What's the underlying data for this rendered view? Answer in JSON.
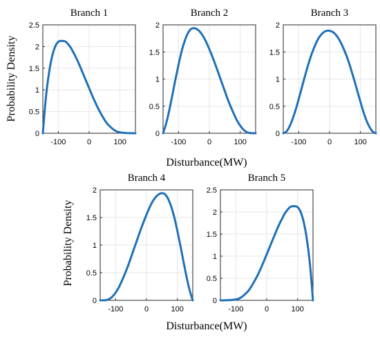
{
  "figure": {
    "ylabel": "Probability Density",
    "xlabel": "Disturbance(MW)",
    "line_color": "#1f6fb7"
  },
  "chart_data": [
    {
      "type": "line",
      "title": "Branch 1",
      "xlim": [
        -150,
        150
      ],
      "ylim": [
        0,
        2.5
      ],
      "xticks": [
        -100,
        0,
        100
      ],
      "yticks": [
        0,
        0.5,
        1,
        1.5,
        2,
        2.5
      ],
      "xtick_labels": [
        "-100",
        "0",
        "100"
      ],
      "ytick_labels": [
        "0",
        "0.5",
        "1",
        "1.5",
        "2",
        "2.5"
      ],
      "grid": true,
      "series": [
        {
          "x": [
            -150,
            -140,
            -130,
            -120,
            -110,
            -100,
            -90,
            -78,
            -70,
            -60,
            -50,
            -40,
            -30,
            -20,
            -10,
            0,
            10,
            20,
            30,
            40,
            50,
            60,
            70,
            80,
            90,
            100,
            110,
            120,
            130,
            140,
            150
          ],
          "values": [
            0,
            0.83,
            1.39,
            1.77,
            2.0,
            2.11,
            2.13,
            2.12,
            2.07,
            1.98,
            1.85,
            1.71,
            1.55,
            1.38,
            1.21,
            1.04,
            0.87,
            0.71,
            0.56,
            0.43,
            0.31,
            0.21,
            0.14,
            0.08,
            0.04,
            0.02,
            0.01,
            0.005,
            0.002,
            0.001,
            0
          ]
        }
      ]
    },
    {
      "type": "line",
      "title": "Branch 2",
      "xlim": [
        -150,
        150
      ],
      "ylim": [
        0,
        2
      ],
      "xticks": [
        -100,
        0,
        100
      ],
      "yticks": [
        0,
        0.5,
        1,
        1.5,
        2
      ],
      "xtick_labels": [
        "-100",
        "0",
        "100"
      ],
      "ytick_labels": [
        "0",
        "0.5",
        "1",
        "1.5",
        "2"
      ],
      "grid": true,
      "series": [
        {
          "x": [
            -150,
            -140,
            -130,
            -120,
            -110,
            -100,
            -90,
            -80,
            -70,
            -60,
            -50,
            -40,
            -30,
            -20,
            -10,
            0,
            10,
            20,
            30,
            40,
            50,
            60,
            70,
            80,
            90,
            100,
            110,
            120,
            130,
            140,
            150
          ],
          "values": [
            0,
            0.18,
            0.42,
            0.7,
            0.99,
            1.26,
            1.51,
            1.7,
            1.84,
            1.92,
            1.94,
            1.92,
            1.87,
            1.79,
            1.68,
            1.55,
            1.41,
            1.26,
            1.1,
            0.94,
            0.78,
            0.62,
            0.48,
            0.35,
            0.23,
            0.14,
            0.07,
            0.025,
            0.005,
            0.001,
            0
          ]
        }
      ]
    },
    {
      "type": "line",
      "title": "Branch 3",
      "xlim": [
        -150,
        150
      ],
      "ylim": [
        0,
        2
      ],
      "xticks": [
        -100,
        0,
        100
      ],
      "yticks": [
        0,
        0.5,
        1,
        1.5,
        2
      ],
      "xtick_labels": [
        "-100",
        "0",
        "100"
      ],
      "ytick_labels": [
        "0",
        "0.5",
        "1",
        "1.5",
        "2"
      ],
      "grid": true,
      "series": [
        {
          "x": [
            -150,
            -140,
            -130,
            -120,
            -110,
            -100,
            -90,
            -80,
            -70,
            -60,
            -50,
            -40,
            -30,
            -20,
            -10,
            0,
            10,
            20,
            30,
            40,
            50,
            60,
            70,
            80,
            90,
            100,
            110,
            120,
            130,
            140,
            150
          ],
          "values": [
            0,
            0.03,
            0.12,
            0.26,
            0.43,
            0.63,
            0.84,
            1.05,
            1.25,
            1.43,
            1.58,
            1.71,
            1.8,
            1.86,
            1.89,
            1.89,
            1.87,
            1.82,
            1.74,
            1.63,
            1.5,
            1.35,
            1.17,
            0.98,
            0.78,
            0.58,
            0.39,
            0.23,
            0.11,
            0.03,
            0
          ]
        }
      ]
    },
    {
      "type": "line",
      "title": "Branch 4",
      "xlim": [
        -150,
        150
      ],
      "ylim": [
        0,
        2
      ],
      "xticks": [
        -100,
        0,
        100
      ],
      "yticks": [
        0,
        0.5,
        1,
        1.5,
        2
      ],
      "xtick_labels": [
        "-100",
        "0",
        "100"
      ],
      "ytick_labels": [
        "0",
        "0.5",
        "1",
        "1.5",
        "2"
      ],
      "grid": true,
      "series": [
        {
          "x": [
            -150,
            -140,
            -130,
            -120,
            -110,
            -100,
            -90,
            -80,
            -70,
            -60,
            -50,
            -40,
            -30,
            -20,
            -10,
            0,
            10,
            20,
            30,
            40,
            50,
            60,
            70,
            80,
            90,
            100,
            110,
            120,
            130,
            140,
            150
          ],
          "values": [
            0,
            0.001,
            0.005,
            0.025,
            0.07,
            0.14,
            0.23,
            0.35,
            0.48,
            0.62,
            0.78,
            0.94,
            1.1,
            1.26,
            1.41,
            1.55,
            1.68,
            1.79,
            1.87,
            1.92,
            1.94,
            1.92,
            1.84,
            1.7,
            1.51,
            1.26,
            0.99,
            0.7,
            0.42,
            0.18,
            0
          ]
        }
      ]
    },
    {
      "type": "line",
      "title": "Branch 5",
      "xlim": [
        -150,
        150
      ],
      "ylim": [
        0,
        2.5
      ],
      "xticks": [
        -100,
        0,
        100
      ],
      "yticks": [
        0,
        0.5,
        1,
        1.5,
        2,
        2.5
      ],
      "xtick_labels": [
        "-100",
        "0",
        "100"
      ],
      "ytick_labels": [
        "0",
        "0.5",
        "1",
        "1.5",
        "2",
        "2.5"
      ],
      "grid": true,
      "series": [
        {
          "x": [
            -150,
            -140,
            -130,
            -120,
            -110,
            -100,
            -90,
            -80,
            -70,
            -60,
            -50,
            -40,
            -30,
            -20,
            -10,
            0,
            10,
            20,
            30,
            40,
            50,
            60,
            70,
            78,
            90,
            100,
            110,
            120,
            130,
            140,
            150
          ],
          "values": [
            0,
            0.001,
            0.002,
            0.005,
            0.01,
            0.02,
            0.04,
            0.08,
            0.14,
            0.21,
            0.31,
            0.43,
            0.56,
            0.71,
            0.87,
            1.04,
            1.21,
            1.38,
            1.55,
            1.71,
            1.85,
            1.98,
            2.07,
            2.12,
            2.13,
            2.11,
            2.0,
            1.77,
            1.39,
            0.83,
            0
          ]
        }
      ]
    }
  ]
}
